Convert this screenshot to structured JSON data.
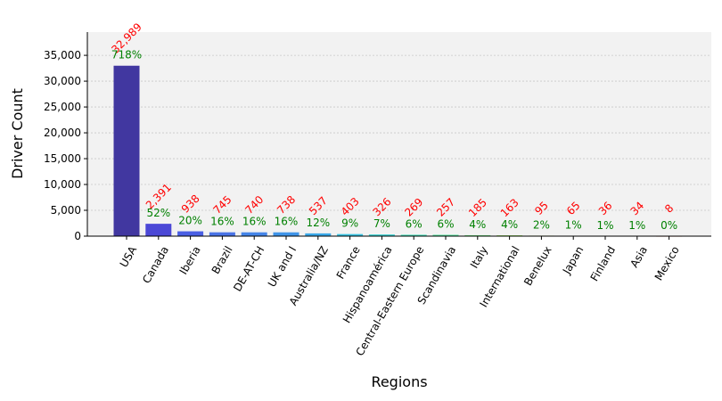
{
  "chart_data": {
    "type": "bar",
    "title": "",
    "xlabel": "Regions",
    "ylabel": "Driver Count",
    "categories": [
      "USA",
      "Canada",
      "Iberia",
      "Brazil",
      "DE-AT-CH",
      "UK and I",
      "Australia/NZ",
      "France",
      "Hispanoamérica",
      "Central-Eastern Europe",
      "Scandinavia",
      "Italy",
      "International",
      "Benelux",
      "Japan",
      "Finland",
      "Asia",
      "Mexico"
    ],
    "values": [
      32989,
      2391,
      938,
      745,
      740,
      738,
      537,
      403,
      326,
      269,
      257,
      185,
      163,
      95,
      65,
      36,
      34,
      8
    ],
    "value_labels": [
      "32,989",
      "2,391",
      "938",
      "745",
      "740",
      "738",
      "537",
      "403",
      "326",
      "269",
      "257",
      "185",
      "163",
      "95",
      "65",
      "36",
      "34",
      "8"
    ],
    "percent_labels": [
      "718%",
      "52%",
      "20%",
      "16%",
      "16%",
      "16%",
      "12%",
      "9%",
      "7%",
      "6%",
      "6%",
      "4%",
      "4%",
      "2%",
      "1%",
      "1%",
      "1%",
      "0%"
    ],
    "bar_colors": [
      "#4137a0",
      "#4b48d6",
      "#4a5fe4",
      "#4a74e6",
      "#4585e8",
      "#3f94e8",
      "#3aa8e8",
      "#38c2e0",
      "#3ad0d0",
      "#3fdcb6",
      "#4fe09a",
      "#6ee07c",
      "#99e060",
      "#c6d84e",
      "#e8c744",
      "#efa23c",
      "#e8743c",
      "#d84a38"
    ],
    "yticks": [
      0,
      5000,
      10000,
      15000,
      20000,
      25000,
      30000,
      35000
    ],
    "ytick_labels": [
      "0",
      "5,000",
      "10,000",
      "15,000",
      "20,000",
      "25,000",
      "30,000",
      "35,000"
    ],
    "ylim": [
      0,
      39500
    ],
    "grid": true,
    "colors": {
      "value_label": "#ff0000",
      "percent_label": "#008000",
      "plot_background": "#f2f2f2"
    }
  }
}
